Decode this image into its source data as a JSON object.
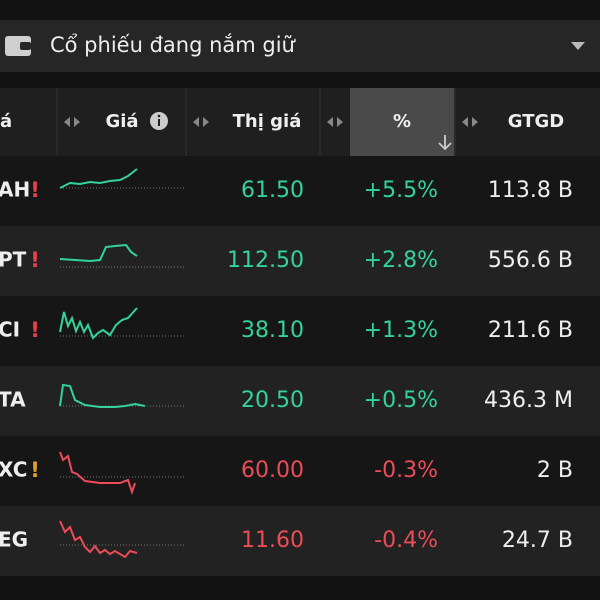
{
  "header": {
    "title": "Cổ phiếu đang nắm giữ"
  },
  "table": {
    "columns": [
      "á",
      "Giá",
      "Thị giá",
      "%",
      "GTGD"
    ],
    "rows": [
      {
        "ticker": "AH",
        "alert": "!",
        "alert_color": "#e8404c",
        "price": "61.50",
        "change": "+5.5%",
        "volume": "113.8 B",
        "color": "#34d399"
      },
      {
        "ticker": "PT",
        "alert": "!",
        "alert_color": "#e8404c",
        "price": "112.50",
        "change": "+2.8%",
        "volume": "556.6 B",
        "color": "#34d399"
      },
      {
        "ticker": "CI",
        "alert": "!",
        "alert_color": "#e8404c",
        "price": "38.10",
        "change": "+1.3%",
        "volume": "211.6 B",
        "color": "#34d399"
      },
      {
        "ticker": "TA",
        "price": "20.50",
        "change": "+0.5%",
        "volume": "436.3 M",
        "color": "#34d399"
      },
      {
        "ticker": "XC",
        "alert": "!",
        "alert_color": "#e0a030",
        "price": "60.00",
        "change": "-0.3%",
        "volume": "2 B",
        "color": "#ec4b58"
      },
      {
        "ticker": "EG",
        "price": "11.60",
        "change": "-0.4%",
        "volume": "24.7 B",
        "color": "#ec4b58"
      }
    ]
  }
}
